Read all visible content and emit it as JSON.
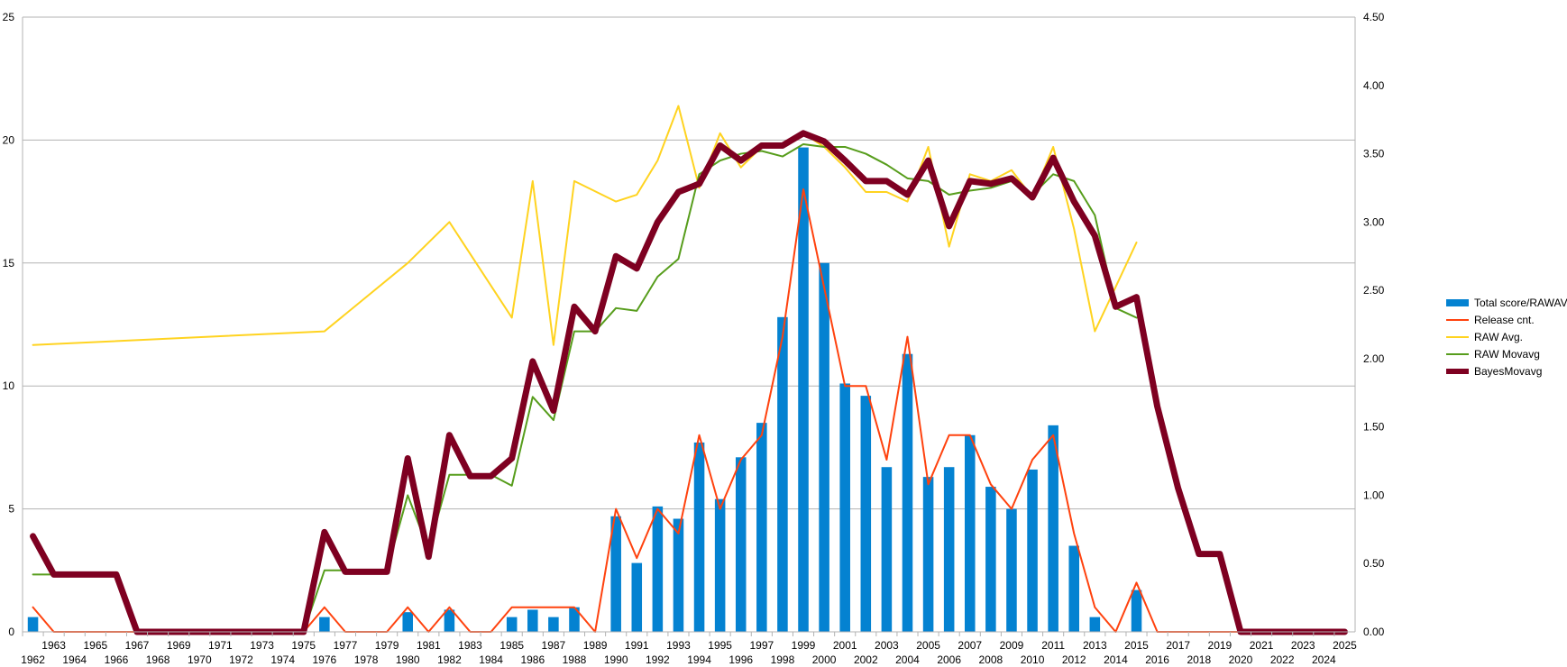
{
  "chart_data": {
    "type": "bar+line",
    "title": "",
    "x": [
      1962,
      1963,
      1964,
      1965,
      1966,
      1967,
      1968,
      1969,
      1970,
      1971,
      1972,
      1973,
      1974,
      1975,
      1976,
      1977,
      1978,
      1979,
      1980,
      1981,
      1982,
      1983,
      1984,
      1985,
      1986,
      1987,
      1988,
      1989,
      1990,
      1991,
      1992,
      1993,
      1994,
      1995,
      1996,
      1997,
      1998,
      1999,
      2000,
      2001,
      2002,
      2003,
      2004,
      2005,
      2006,
      2007,
      2008,
      2009,
      2010,
      2011,
      2012,
      2013,
      2014,
      2015,
      2016,
      2017,
      2018,
      2019,
      2020,
      2021,
      2022,
      2023,
      2024,
      2025
    ],
    "left_axis": {
      "ylim": [
        0,
        25
      ],
      "ticks": [
        "0",
        "5",
        "10",
        "15",
        "20",
        "25"
      ]
    },
    "right_axis": {
      "ylim": [
        0,
        4.5
      ],
      "ticks": [
        "0.00",
        "0.50",
        "1.00",
        "1.50",
        "2.00",
        "2.50",
        "3.00",
        "3.50",
        "4.00",
        "4.50"
      ]
    },
    "grid": "horizontal",
    "legend_position": "right",
    "series": [
      {
        "name": "Total score/RAWAVG",
        "type": "bar",
        "axis": "left",
        "color": "#0482d1",
        "values": [
          0.6,
          null,
          null,
          null,
          null,
          null,
          null,
          null,
          null,
          null,
          null,
          null,
          null,
          null,
          0.6,
          null,
          null,
          null,
          0.8,
          null,
          0.9,
          null,
          null,
          0.6,
          0.9,
          0.6,
          1.0,
          null,
          4.7,
          2.8,
          5.1,
          4.6,
          7.7,
          5.4,
          7.1,
          8.5,
          12.8,
          19.7,
          15.0,
          10.1,
          9.6,
          6.7,
          11.3,
          6.3,
          6.7,
          8.0,
          5.9,
          5.0,
          6.6,
          8.4,
          3.5,
          0.6,
          null,
          1.7,
          null,
          null,
          null,
          null,
          null,
          null,
          null,
          null,
          null,
          null
        ]
      },
      {
        "name": "Release cnt.",
        "type": "line",
        "axis": "left",
        "color": "#ff420e",
        "width": 2,
        "values": [
          1,
          0,
          0,
          0,
          0,
          0,
          0,
          0,
          0,
          0,
          0,
          0,
          0,
          0,
          1,
          0,
          0,
          0,
          1,
          0,
          1,
          0,
          0,
          1,
          1,
          1,
          1,
          0,
          5,
          3,
          5,
          4,
          8,
          5,
          7,
          8,
          12,
          18,
          14,
          10,
          10,
          7,
          12,
          6,
          8,
          8,
          6,
          5,
          7,
          8,
          4,
          1,
          0,
          2,
          0,
          0,
          0,
          0,
          0,
          null,
          null,
          null,
          null,
          null
        ]
      },
      {
        "name": "RAW Avg.",
        "type": "line",
        "axis": "right",
        "color": "#ffd320",
        "width": 2,
        "values": [
          2.1,
          null,
          null,
          null,
          null,
          null,
          null,
          null,
          null,
          null,
          null,
          null,
          null,
          null,
          2.2,
          null,
          null,
          null,
          2.7,
          null,
          3.0,
          null,
          null,
          2.3,
          3.3,
          2.1,
          3.3,
          null,
          3.15,
          3.2,
          3.45,
          3.85,
          3.25,
          3.65,
          3.4,
          3.55,
          3.55,
          3.65,
          3.55,
          3.4,
          3.22,
          3.22,
          3.15,
          3.55,
          2.82,
          3.35,
          3.3,
          3.38,
          3.18,
          3.55,
          2.95,
          2.2,
          null,
          2.85,
          null,
          null,
          null,
          null,
          null,
          null,
          null,
          null,
          null,
          null
        ]
      },
      {
        "name": "RAW Movavg",
        "type": "line",
        "axis": "right",
        "color": "#579d1c",
        "width": 2,
        "values": [
          0.42,
          0.42,
          0.42,
          0.42,
          0.42,
          0.0,
          0.0,
          0.0,
          0.0,
          0.0,
          0.0,
          0.0,
          0.0,
          0.0,
          0.45,
          0.45,
          0.45,
          0.45,
          1.0,
          0.6,
          1.15,
          1.15,
          1.15,
          1.07,
          1.72,
          1.55,
          2.2,
          2.2,
          2.37,
          2.35,
          2.6,
          2.73,
          3.35,
          3.45,
          3.5,
          3.52,
          3.48,
          3.57,
          3.55,
          3.55,
          3.5,
          3.42,
          3.32,
          3.3,
          3.2,
          3.23,
          3.25,
          3.3,
          3.2,
          3.35,
          3.3,
          3.05,
          2.37,
          2.3,
          null,
          null,
          null,
          null,
          null,
          null,
          null,
          null,
          null,
          null
        ]
      },
      {
        "name": "BayesMovavg",
        "type": "line",
        "axis": "right",
        "color": "#7e0021",
        "width": 7,
        "values": [
          0.7,
          0.42,
          0.42,
          0.42,
          0.42,
          0.0,
          0.0,
          0.0,
          0.0,
          0.0,
          0.0,
          0.0,
          0.0,
          0.0,
          0.73,
          0.44,
          0.44,
          0.44,
          1.27,
          0.55,
          1.44,
          1.14,
          1.14,
          1.27,
          1.98,
          1.62,
          2.38,
          2.2,
          2.75,
          2.66,
          3.0,
          3.22,
          3.28,
          3.56,
          3.45,
          3.56,
          3.56,
          3.65,
          3.59,
          3.45,
          3.3,
          3.3,
          3.2,
          3.45,
          2.97,
          3.3,
          3.28,
          3.32,
          3.18,
          3.47,
          3.15,
          2.9,
          2.38,
          2.45,
          1.65,
          1.05,
          0.57,
          0.57,
          0.0,
          0.0,
          0.0,
          0.0,
          0.0,
          0.0
        ]
      }
    ]
  },
  "colors": {
    "grid": "#b3b3b3",
    "axis": "#b3b3b3"
  }
}
